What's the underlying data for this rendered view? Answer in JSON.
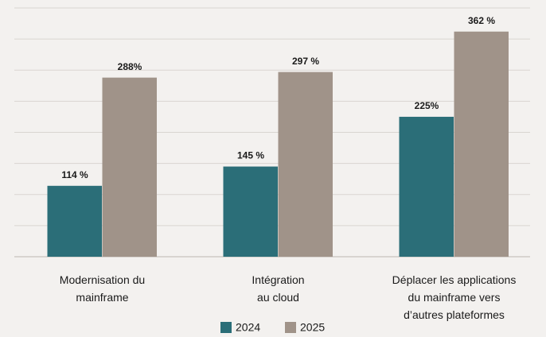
{
  "chart_data": {
    "type": "bar",
    "categories": [
      "Modernisation du\nmainframe",
      "Intégration\nau cloud",
      "Déplacer les applications\ndu mainframe vers\nd’autres plateformes"
    ],
    "series": [
      {
        "name": "2024",
        "color": "#2b6e78",
        "values": [
          114,
          145,
          225
        ],
        "value_labels": [
          "114 %",
          "145 %",
          "225%"
        ]
      },
      {
        "name": "2025",
        "color": "#a09389",
        "values": [
          288,
          297,
          362
        ],
        "value_labels": [
          "288%",
          "297 %",
          "362 %"
        ]
      }
    ],
    "ylim": [
      0,
      400
    ],
    "yticks": [
      0,
      50,
      100,
      150,
      200,
      250,
      300,
      350,
      400
    ],
    "grid": true,
    "legend": "bottom"
  }
}
